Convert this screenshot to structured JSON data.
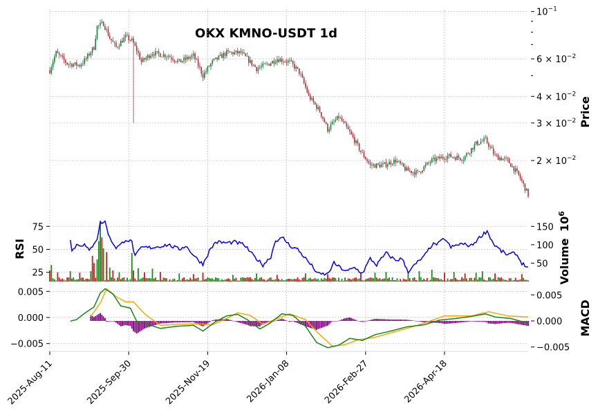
{
  "chart_data": {
    "type": "candlestick",
    "title": "OKX KMNO-USDT 1d",
    "colors": {
      "up": "#1a7a3a",
      "down": "#a8323a",
      "volume_up": "#1a8a1a",
      "volume_down": "#cc1a1a",
      "rsi": "#0000ee",
      "macd_line": "#118811",
      "signal_line": "#ffa500",
      "histogram": "#800080"
    },
    "dates": {
      "start": "2025-08-11",
      "end": "2026-06-10",
      "ticks": [
        "2025-Aug-11",
        "2025-Sep-30",
        "2025-Nov-19",
        "2026-Jan-08",
        "2026-Feb-27",
        "2026-Apr-18"
      ]
    },
    "price": {
      "ylabel": "Price",
      "scale": "log",
      "ylim": [
        0.0125,
        0.102
      ],
      "tick_labels": [
        "10^-1",
        "6×10^-2",
        "4×10^-2",
        "3×10^-2",
        "2×10^-2"
      ],
      "tick_display": [
        {
          "base": "10",
          "exp": "−1"
        },
        {
          "base": "6 × 10",
          "exp": "−2"
        },
        {
          "base": "4 × 10",
          "exp": "−2"
        },
        {
          "base": "3 × 10",
          "exp": "−2"
        },
        {
          "base": "2 × 10",
          "exp": "−2"
        }
      ],
      "tick_values": [
        0.1,
        0.06,
        0.04,
        0.03,
        0.02
      ],
      "anchors": [
        [
          "2025-08-11",
          0.053
        ],
        [
          "2025-08-15",
          0.064
        ],
        [
          "2025-08-22",
          0.057
        ],
        [
          "2025-08-30",
          0.056
        ],
        [
          "2025-09-03",
          0.06
        ],
        [
          "2025-09-08",
          0.068
        ],
        [
          "2025-09-10",
          0.085
        ],
        [
          "2025-09-14",
          0.088
        ],
        [
          "2025-09-18",
          0.075
        ],
        [
          "2025-09-22",
          0.068
        ],
        [
          "2025-09-28",
          0.076
        ],
        [
          "2025-10-02",
          0.073
        ],
        [
          "2025-10-05",
          0.066
        ],
        [
          "2025-10-08",
          0.058
        ],
        [
          "2025-10-15",
          0.064
        ],
        [
          "2025-10-25",
          0.062
        ],
        [
          "2025-11-01",
          0.058
        ],
        [
          "2025-11-10",
          0.062
        ],
        [
          "2025-11-16",
          0.05
        ],
        [
          "2025-11-22",
          0.058
        ],
        [
          "2025-12-01",
          0.064
        ],
        [
          "2025-12-10",
          0.064
        ],
        [
          "2025-12-20",
          0.054
        ],
        [
          "2025-12-28",
          0.057
        ],
        [
          "2026-01-02",
          0.06
        ],
        [
          "2026-01-10",
          0.058
        ],
        [
          "2026-01-16",
          0.052
        ],
        [
          "2026-01-22",
          0.04
        ],
        [
          "2026-01-29",
          0.034
        ],
        [
          "2026-02-03",
          0.028
        ],
        [
          "2026-02-10",
          0.032
        ],
        [
          "2026-02-17",
          0.027
        ],
        [
          "2026-02-24",
          0.022
        ],
        [
          "2026-03-02",
          0.019
        ],
        [
          "2026-03-10",
          0.019
        ],
        [
          "2026-03-18",
          0.02
        ],
        [
          "2026-03-25",
          0.018
        ],
        [
          "2026-04-01",
          0.0175
        ],
        [
          "2026-04-10",
          0.02
        ],
        [
          "2026-04-20",
          0.021
        ],
        [
          "2026-04-30",
          0.0205
        ],
        [
          "2026-05-08",
          0.024
        ],
        [
          "2026-05-14",
          0.025
        ],
        [
          "2026-05-20",
          0.021
        ],
        [
          "2026-05-28",
          0.02
        ],
        [
          "2026-06-04",
          0.017
        ],
        [
          "2026-06-10",
          0.0138
        ]
      ],
      "wicks": [
        {
          "date": "2025-10-03",
          "low": 0.03
        }
      ]
    },
    "volume": {
      "ylabel": "Volume",
      "unit_label": "10^6",
      "unit_display": {
        "base": "10",
        "exp": "6"
      },
      "ylim": [
        0,
        175
      ],
      "tick_values": [
        50,
        100,
        150
      ],
      "tick_labels": [
        "50",
        "100",
        "150"
      ],
      "bars": [
        [
          "2025-08-11",
          30,
          "d"
        ],
        [
          "2025-08-12",
          45,
          "u"
        ],
        [
          "2025-08-16",
          25,
          "d"
        ],
        [
          "2025-08-24",
          28,
          "u"
        ],
        [
          "2025-08-30",
          24,
          "d"
        ],
        [
          "2025-09-06",
          28,
          "u"
        ],
        [
          "2025-09-07",
          70,
          "d"
        ],
        [
          "2025-09-08",
          50,
          "d"
        ],
        [
          "2025-09-10",
          60,
          "u"
        ],
        [
          "2025-09-11",
          110,
          "u"
        ],
        [
          "2025-09-12",
          160,
          "u"
        ],
        [
          "2025-09-13",
          120,
          "d"
        ],
        [
          "2025-09-14",
          90,
          "u"
        ],
        [
          "2025-09-16",
          80,
          "d"
        ],
        [
          "2025-09-18",
          38,
          "u"
        ],
        [
          "2025-09-20",
          30,
          "d"
        ],
        [
          "2025-09-24",
          25,
          "u"
        ],
        [
          "2025-10-02",
          78,
          "u"
        ],
        [
          "2025-10-03",
          30,
          "d"
        ],
        [
          "2025-10-06",
          36,
          "u"
        ],
        [
          "2025-10-10",
          25,
          "d"
        ],
        [
          "2025-10-15",
          35,
          "u"
        ],
        [
          "2025-10-20",
          26,
          "d"
        ],
        [
          "2025-11-01",
          22,
          "u"
        ],
        [
          "2025-11-10",
          20,
          "d"
        ],
        [
          "2025-11-16",
          24,
          "d"
        ],
        [
          "2025-12-05",
          18,
          "u"
        ],
        [
          "2025-12-20",
          22,
          "u"
        ],
        [
          "2026-01-02",
          18,
          "d"
        ],
        [
          "2026-01-20",
          22,
          "u"
        ],
        [
          "2026-02-03",
          20,
          "d"
        ],
        [
          "2026-02-24",
          25,
          "d"
        ],
        [
          "2026-03-05",
          24,
          "u"
        ],
        [
          "2026-03-12",
          26,
          "u"
        ],
        [
          "2026-03-26",
          24,
          "u"
        ],
        [
          "2026-04-02",
          28,
          "u"
        ],
        [
          "2026-04-10",
          32,
          "u"
        ],
        [
          "2026-04-18",
          24,
          "d"
        ],
        [
          "2026-04-24",
          26,
          "u"
        ],
        [
          "2026-05-01",
          22,
          "d"
        ],
        [
          "2026-05-08",
          24,
          "u"
        ],
        [
          "2026-05-12",
          28,
          "u"
        ],
        [
          "2026-05-20",
          22,
          "d"
        ],
        [
          "2026-06-06",
          20,
          "d"
        ]
      ]
    },
    "rsi": {
      "ylabel": "RSI",
      "ylim": [
        15,
        85
      ],
      "tick_values": [
        25,
        50,
        75
      ],
      "tick_labels": [
        "25",
        "50",
        "75"
      ],
      "anchors": [
        [
          "2025-08-24",
          62
        ],
        [
          "2025-08-25",
          48
        ],
        [
          "2025-08-28",
          55
        ],
        [
          "2025-09-02",
          55
        ],
        [
          "2025-09-05",
          48
        ],
        [
          "2025-09-08",
          57
        ],
        [
          "2025-09-10",
          62
        ],
        [
          "2025-09-12",
          79
        ],
        [
          "2025-09-15",
          80
        ],
        [
          "2025-09-18",
          62
        ],
        [
          "2025-09-22",
          52
        ],
        [
          "2025-09-25",
          55
        ],
        [
          "2025-09-28",
          61
        ],
        [
          "2025-10-02",
          58
        ],
        [
          "2025-10-04",
          42
        ],
        [
          "2025-10-08",
          52
        ],
        [
          "2025-10-15",
          52
        ],
        [
          "2025-10-25",
          55
        ],
        [
          "2025-11-01",
          50
        ],
        [
          "2025-11-05",
          54
        ],
        [
          "2025-11-12",
          40
        ],
        [
          "2025-11-16",
          34
        ],
        [
          "2025-11-20",
          48
        ],
        [
          "2025-11-24",
          58
        ],
        [
          "2025-12-01",
          57
        ],
        [
          "2025-12-06",
          58
        ],
        [
          "2025-12-12",
          55
        ],
        [
          "2025-12-18",
          43
        ],
        [
          "2025-12-24",
          33
        ],
        [
          "2025-12-29",
          42
        ],
        [
          "2026-01-01",
          60
        ],
        [
          "2026-01-06",
          62
        ],
        [
          "2026-01-10",
          54
        ],
        [
          "2026-01-15",
          50
        ],
        [
          "2026-01-19",
          42
        ],
        [
          "2026-01-24",
          32
        ],
        [
          "2026-01-28",
          23
        ],
        [
          "2026-02-03",
          23
        ],
        [
          "2026-02-07",
          35
        ],
        [
          "2026-02-11",
          30
        ],
        [
          "2026-02-15",
          26
        ],
        [
          "2026-02-20",
          30
        ],
        [
          "2026-02-25",
          24
        ],
        [
          "2026-03-02",
          40
        ],
        [
          "2026-03-06",
          33
        ],
        [
          "2026-03-12",
          46
        ],
        [
          "2026-03-18",
          38
        ],
        [
          "2026-03-22",
          40
        ],
        [
          "2026-03-26",
          26
        ],
        [
          "2026-04-01",
          36
        ],
        [
          "2026-04-05",
          42
        ],
        [
          "2026-04-10",
          55
        ],
        [
          "2026-04-14",
          56
        ],
        [
          "2026-04-18",
          62
        ],
        [
          "2026-04-22",
          52
        ],
        [
          "2026-04-28",
          56
        ],
        [
          "2026-05-05",
          54
        ],
        [
          "2026-05-12",
          66
        ],
        [
          "2026-05-15",
          70
        ],
        [
          "2026-05-19",
          56
        ],
        [
          "2026-05-24",
          48
        ],
        [
          "2026-05-28",
          44
        ],
        [
          "2026-06-02",
          46
        ],
        [
          "2026-06-06",
          35
        ],
        [
          "2026-06-10",
          30
        ]
      ]
    },
    "macd": {
      "ylabel": "MACD",
      "left_ylim": [
        -0.0065,
        0.0065
      ],
      "left_tick_values": [
        -0.005,
        0.0,
        0.005
      ],
      "left_tick_labels": [
        "−0.005",
        "0.000",
        "0.005"
      ],
      "right_ylim": [
        -0.0065,
        0.0065
      ],
      "right_tick_values": [
        -0.005,
        0.0,
        0.005
      ],
      "right_tick_labels": [
        "−0.005",
        "0.000",
        "0.005"
      ],
      "macd_anchors": [
        [
          "2025-08-24",
          -0.0007
        ],
        [
          "2025-08-28",
          -0.0004
        ],
        [
          "2025-09-02",
          0.0008
        ],
        [
          "2025-09-08",
          0.002
        ],
        [
          "2025-09-12",
          0.0047
        ],
        [
          "2025-09-15",
          0.0055
        ],
        [
          "2025-09-20",
          0.0045
        ],
        [
          "2025-09-25",
          0.0022
        ],
        [
          "2025-10-01",
          0.0018
        ],
        [
          "2025-10-05",
          -0.0007
        ],
        [
          "2025-10-12",
          -0.0013
        ],
        [
          "2025-10-20",
          -0.0021
        ],
        [
          "2025-10-30",
          -0.0017
        ],
        [
          "2025-11-10",
          -0.0015
        ],
        [
          "2025-11-16",
          -0.0026
        ],
        [
          "2025-11-24",
          -0.0008
        ],
        [
          "2025-12-01",
          0.0003
        ],
        [
          "2025-12-08",
          0.0006
        ],
        [
          "2025-12-14",
          -0.0004
        ],
        [
          "2025-12-22",
          -0.0022
        ],
        [
          "2025-12-28",
          -0.0012
        ],
        [
          "2026-01-05",
          0.0007
        ],
        [
          "2026-01-12",
          0.0004
        ],
        [
          "2026-01-20",
          -0.0017
        ],
        [
          "2026-01-27",
          -0.0048
        ],
        [
          "2026-02-03",
          -0.0058
        ],
        [
          "2026-02-10",
          -0.0053
        ],
        [
          "2026-02-17",
          -0.004
        ],
        [
          "2026-02-25",
          -0.0044
        ],
        [
          "2026-03-05",
          -0.0033
        ],
        [
          "2026-03-15",
          -0.0026
        ],
        [
          "2026-03-25",
          -0.0018
        ],
        [
          "2026-04-05",
          -0.0014
        ],
        [
          "2026-04-15",
          -0.0005
        ],
        [
          "2026-04-25",
          -0.0002
        ],
        [
          "2026-05-05",
          0.0002
        ],
        [
          "2026-05-14",
          0.0007
        ],
        [
          "2026-05-20",
          0.0001
        ],
        [
          "2026-05-30",
          -0.0002
        ],
        [
          "2026-06-10",
          -0.0011
        ]
      ],
      "signal_anchors": [
        [
          "2025-09-06",
          0.0002
        ],
        [
          "2025-09-12",
          0.0028
        ],
        [
          "2025-09-16",
          0.0055
        ],
        [
          "2025-09-22",
          0.004
        ],
        [
          "2025-09-28",
          0.003
        ],
        [
          "2025-10-03",
          0.003
        ],
        [
          "2025-10-10",
          0.0007
        ],
        [
          "2025-10-20",
          -0.0015
        ],
        [
          "2025-11-01",
          -0.0013
        ],
        [
          "2025-11-12",
          -0.0012
        ],
        [
          "2025-11-22",
          -0.0014
        ],
        [
          "2025-12-01",
          -0.0002
        ],
        [
          "2025-12-08",
          0.0009
        ],
        [
          "2025-12-16",
          0.0004
        ],
        [
          "2025-12-24",
          -0.0013
        ],
        [
          "2026-01-02",
          -0.0002
        ],
        [
          "2026-01-10",
          0.0007
        ],
        [
          "2026-01-20",
          -0.0004
        ],
        [
          "2026-01-28",
          -0.003
        ],
        [
          "2026-02-06",
          -0.0055
        ],
        [
          "2026-02-14",
          -0.0052
        ],
        [
          "2026-02-22",
          -0.0043
        ],
        [
          "2026-03-05",
          -0.0038
        ],
        [
          "2026-03-18",
          -0.0027
        ],
        [
          "2026-04-01",
          -0.0015
        ],
        [
          "2026-04-18",
          0.0003
        ],
        [
          "2026-05-05",
          0.0003
        ],
        [
          "2026-05-16",
          0.0011
        ],
        [
          "2026-05-28",
          0.0003
        ],
        [
          "2026-06-10",
          0.0001
        ]
      ]
    }
  }
}
